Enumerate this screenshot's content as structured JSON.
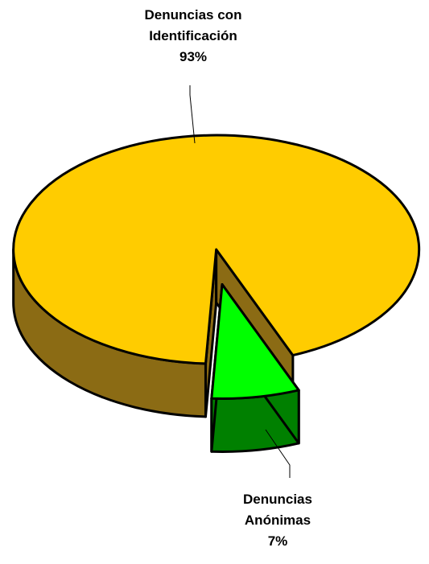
{
  "chart_data": {
    "type": "pie",
    "title": "",
    "slices": [
      {
        "label_lines": [
          "Denuncias con",
          "Identificación"
        ],
        "value": 93,
        "percent_label": "93%",
        "top_color": "#ffcc00",
        "side_color": "#8b6b14"
      },
      {
        "label_lines": [
          "Denuncias",
          "Anónimas"
        ],
        "value": 7,
        "percent_label": "7%",
        "top_color": "#00ff00",
        "side_color": "#008000"
      }
    ],
    "style": "3d-exploded",
    "legend": "none"
  }
}
